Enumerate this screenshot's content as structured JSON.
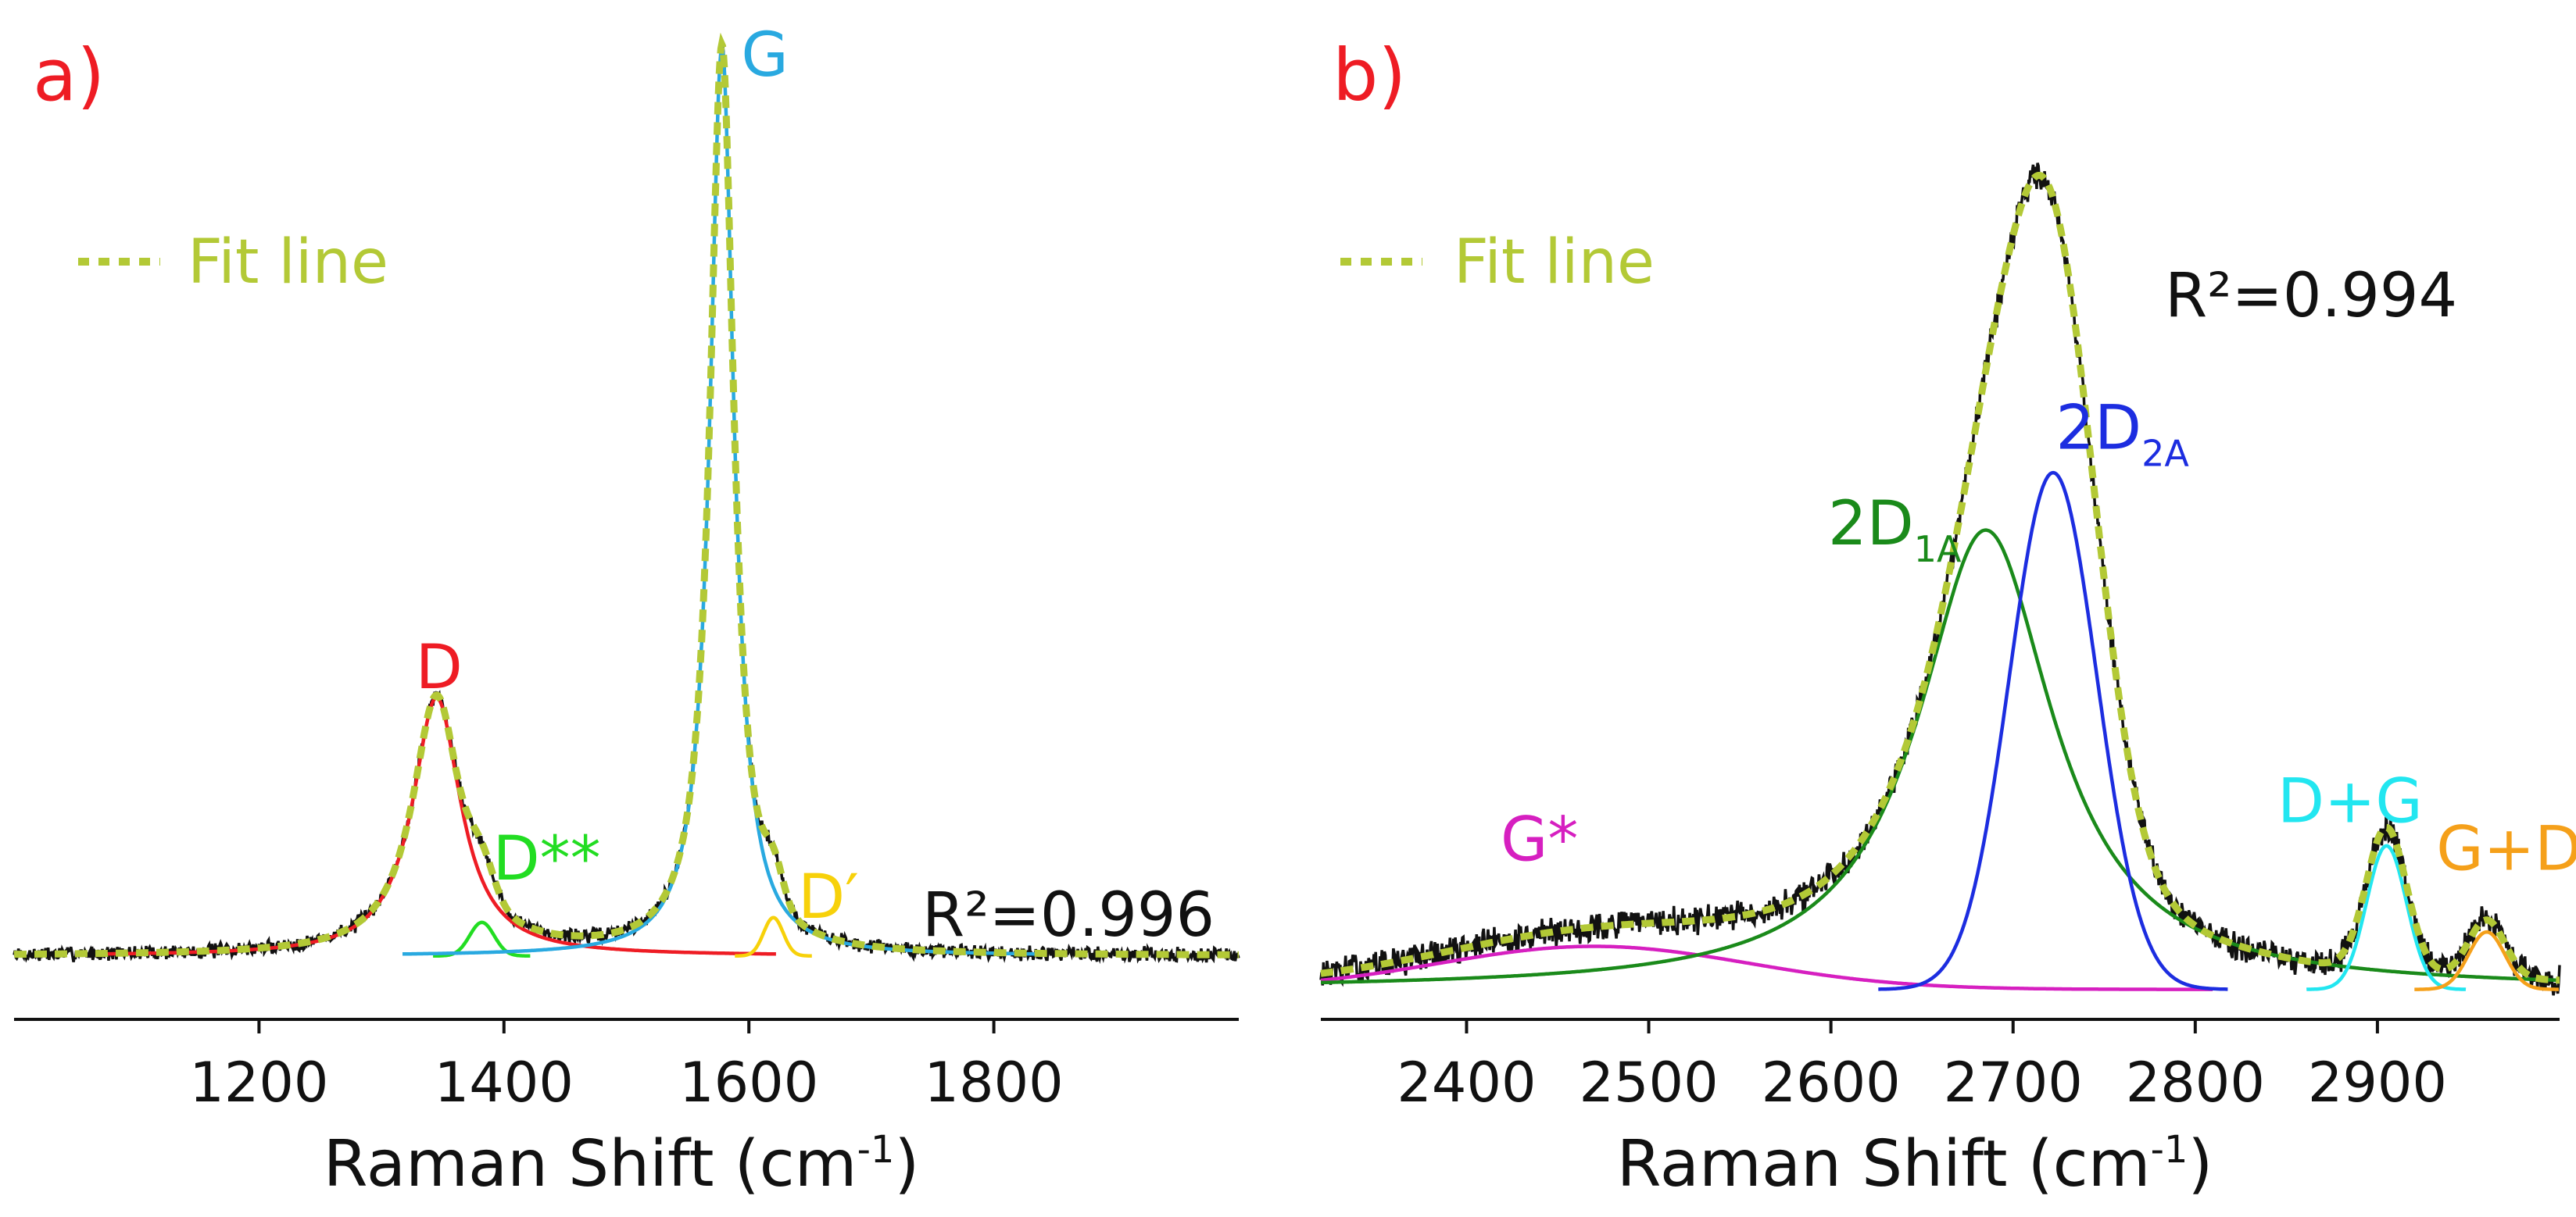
{
  "colors": {
    "data": "#111111",
    "fit": "#b3c936",
    "D": "#ee1c24",
    "Dss": "#22dd22",
    "G": "#29a9e0",
    "Dp": "#f7d10a",
    "Gstar": "#d61fc0",
    "twoD1A": "#1a8a1a",
    "twoD2A": "#1c2de0",
    "DG": "#22e6f0",
    "GDp": "#f5a01a",
    "panel_letter": "#ee1c24"
  },
  "chart_data": [
    {
      "type": "line",
      "panel": "a)",
      "xlabel": "Raman Shift (cm",
      "xlabel_sup": "-1",
      "xlabel_close": ")",
      "xlim": [
        1000,
        2000
      ],
      "ylim": [
        0,
        1
      ],
      "xticks": [
        1200,
        1400,
        1600,
        1800
      ],
      "baseline": 0.05,
      "legend_label": "Fit line",
      "r2_text": "R²=0.996",
      "noise_amp": 0.006,
      "seed": 7,
      "components": [
        {
          "name": "D",
          "label": "D",
          "sub": "",
          "shape": "lorentz",
          "center": 1345,
          "width": 24,
          "height": 0.27,
          "color_key": "D"
        },
        {
          "name": "D**",
          "label": "D**",
          "sub": "",
          "shape": "gauss",
          "center": 1382,
          "width": 10,
          "height": 0.035,
          "color_key": "Dss"
        },
        {
          "name": "G",
          "label": "G",
          "sub": "",
          "shape": "lorentz",
          "center": 1578,
          "width": 12,
          "height": 0.95,
          "color_key": "G"
        },
        {
          "name": "D'",
          "label": "D′",
          "sub": "",
          "shape": "gauss",
          "center": 1620,
          "width": 8,
          "height": 0.04,
          "color_key": "Dp"
        }
      ],
      "labels": [
        {
          "key": "D",
          "text": "D",
          "sub": "",
          "x": 1347,
          "y": 0.33
        },
        {
          "key": "Dss",
          "text": "D**",
          "sub": "",
          "x": 1435,
          "y": 0.13
        },
        {
          "key": "G",
          "text": "G",
          "sub": "",
          "x": 1613,
          "y": 0.97
        },
        {
          "key": "Dp",
          "text": "D′",
          "sub": "",
          "x": 1665,
          "y": 0.09
        }
      ]
    },
    {
      "type": "line",
      "panel": "b)",
      "xlabel": "Raman Shift (cm",
      "xlabel_sup": "-1",
      "xlabel_close": ")",
      "xlim": [
        2320,
        3000
      ],
      "ylim": [
        0,
        1
      ],
      "xticks": [
        2400,
        2500,
        2600,
        2700,
        2800,
        2900
      ],
      "baseline": 0.015,
      "legend_label": "Fit line",
      "r2_text": "R²=0.994",
      "noise_amp": 0.012,
      "seed": 13,
      "components": [
        {
          "name": "G*",
          "label": "G*",
          "sub": "",
          "shape": "gauss",
          "center": 2470,
          "width": 85,
          "height": 0.045,
          "color_key": "Gstar"
        },
        {
          "name": "2D1A",
          "label": "2D",
          "sub": "1A",
          "shape": "lorentz",
          "center": 2685,
          "width": 45,
          "height": 0.48,
          "color_key": "twoD1A"
        },
        {
          "name": "2D2A",
          "label": "2D",
          "sub": "2A",
          "shape": "gauss",
          "center": 2722,
          "width": 24,
          "height": 0.54,
          "color_key": "twoD2A"
        },
        {
          "name": "D+G",
          "label": "D+G",
          "sub": "",
          "shape": "gauss",
          "center": 2905,
          "width": 11,
          "height": 0.15,
          "color_key": "DG"
        },
        {
          "name": "G+D'",
          "label": "G+D′",
          "sub": "",
          "shape": "gauss",
          "center": 2960,
          "width": 10,
          "height": 0.06,
          "color_key": "GDp"
        }
      ],
      "labels": [
        {
          "key": "Gstar",
          "text": "G*",
          "sub": "",
          "x": 2440,
          "y": 0.15
        },
        {
          "key": "twoD1A",
          "text": "2D",
          "sub": "1A",
          "x": 2635,
          "y": 0.48
        },
        {
          "key": "twoD2A",
          "text": "2D",
          "sub": "2A",
          "x": 2760,
          "y": 0.58
        },
        {
          "key": "DG",
          "text": "D+G",
          "sub": "",
          "x": 2885,
          "y": 0.19
        },
        {
          "key": "GDp",
          "text": "G+D′",
          "sub": "",
          "x": 2976,
          "y": 0.14
        }
      ]
    }
  ]
}
